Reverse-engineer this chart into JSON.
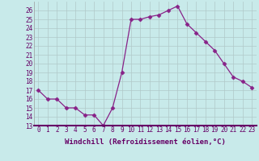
{
  "x": [
    0,
    1,
    2,
    3,
    4,
    5,
    6,
    7,
    8,
    9,
    10,
    11,
    12,
    13,
    14,
    15,
    16,
    17,
    18,
    19,
    20,
    21,
    22,
    23
  ],
  "y": [
    17,
    16,
    16,
    15,
    15,
    14.2,
    14.2,
    13,
    15,
    19,
    25,
    25,
    25.3,
    25.5,
    26,
    26.5,
    24.5,
    23.5,
    22.5,
    21.5,
    20,
    18.5,
    18,
    17.3
  ],
  "line_color": "#882288",
  "marker": "D",
  "marker_size": 2.5,
  "bg_color": "#c8eaea",
  "grid_color": "#b0c8c8",
  "xlabel": "Windchill (Refroidissement éolien,°C)",
  "ylim": [
    13,
    27
  ],
  "xlim_min": -0.5,
  "xlim_max": 23.5,
  "yticks": [
    13,
    14,
    15,
    16,
    17,
    18,
    19,
    20,
    21,
    22,
    23,
    24,
    25,
    26
  ],
  "xticks": [
    0,
    1,
    2,
    3,
    4,
    5,
    6,
    7,
    8,
    9,
    10,
    11,
    12,
    13,
    14,
    15,
    16,
    17,
    18,
    19,
    20,
    21,
    22,
    23
  ],
  "tick_fontsize": 5.5,
  "xlabel_fontsize": 6.5,
  "axis_label_color": "#660066",
  "tick_color": "#660066"
}
